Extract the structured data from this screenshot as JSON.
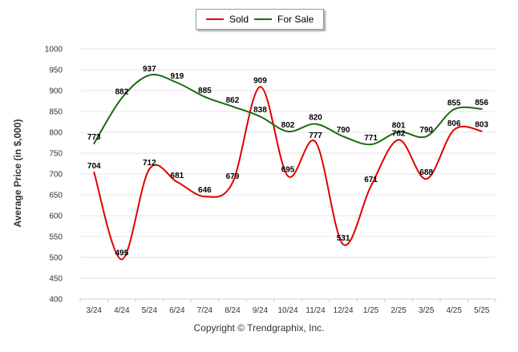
{
  "chart_data": {
    "type": "line",
    "title": "",
    "xlabel": "",
    "ylabel": "Average Price (in $,000)",
    "categories": [
      "3/24",
      "4/24",
      "5/24",
      "6/24",
      "7/24",
      "8/24",
      "9/24",
      "10/24",
      "11/24",
      "12/24",
      "1/25",
      "2/25",
      "3/25",
      "4/25",
      "5/25"
    ],
    "series": [
      {
        "name": "Sold",
        "color": "#e00000",
        "values": [
          704,
          495,
          712,
          681,
          646,
          679,
          909,
          695,
          777,
          531,
          671,
          782,
          688,
          806,
          803
        ]
      },
      {
        "name": "For Sale",
        "color": "#1a6b11",
        "values": [
          773,
          882,
          937,
          919,
          885,
          862,
          838,
          802,
          820,
          790,
          771,
          801,
          790,
          855,
          856
        ]
      }
    ],
    "ylim": [
      400,
      1000
    ],
    "yticks": [
      400,
      450,
      500,
      550,
      600,
      650,
      700,
      750,
      800,
      850,
      900,
      950,
      1000
    ],
    "grid": true,
    "legend_position": "top-center",
    "smooth": true
  },
  "footer": {
    "credit": "Copyright © Trendgraphix, Inc."
  }
}
